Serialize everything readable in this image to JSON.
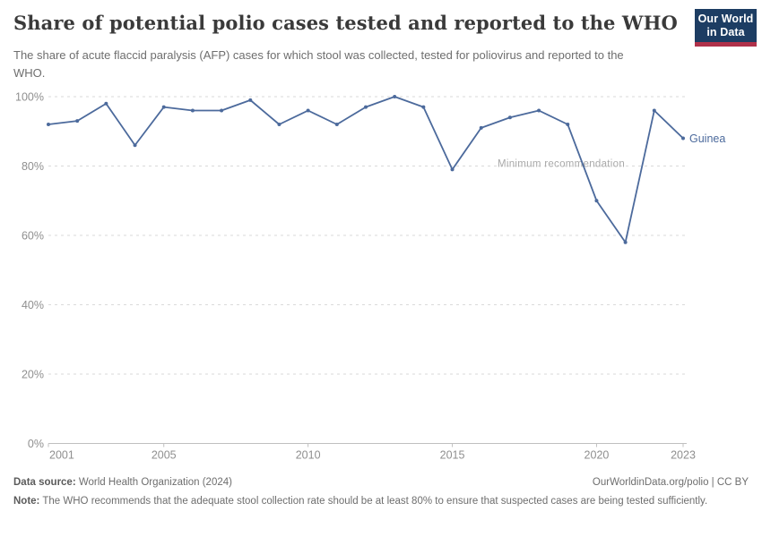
{
  "header": {
    "title": "Share of potential polio cases tested and reported to the WHO",
    "subtitle": "The share of acute flaccid paralysis (AFP) cases for which stool was collected, tested for poliovirus and reported to the WHO.",
    "logo": {
      "line1": "Our World",
      "line2": "in Data"
    }
  },
  "chart_data": {
    "type": "line",
    "title": "Share of potential polio cases tested and reported to the WHO",
    "x": [
      2001,
      2002,
      2003,
      2004,
      2005,
      2006,
      2007,
      2008,
      2009,
      2010,
      2011,
      2012,
      2013,
      2014,
      2015,
      2016,
      2017,
      2018,
      2019,
      2020,
      2021,
      2022,
      2023
    ],
    "series": [
      {
        "name": "Guinea",
        "values": [
          92,
          93,
          98,
          86,
          97,
          96,
          96,
          99,
          92,
          96,
          92,
          97,
          100,
          97,
          79,
          91,
          94,
          96,
          92,
          70,
          58,
          96,
          88
        ]
      }
    ],
    "ylim": [
      0,
      100
    ],
    "yticks": [
      0,
      20,
      40,
      60,
      80,
      100
    ],
    "ytick_suffix": "%",
    "xticks": [
      2001,
      2005,
      2010,
      2015,
      2020,
      2023
    ],
    "grid": true,
    "legend_position": "end-of-line",
    "annotation": {
      "text": "Minimum recommendation",
      "value": 80
    }
  },
  "footer": {
    "source_label": "Data source:",
    "source_value": "World Health Organization (2024)",
    "attribution": "OurWorldinData.org/polio | CC BY",
    "note_label": "Note:",
    "note_text": "The WHO recommends that the adequate stool collection rate should be at least 80% to ensure that suspected cases are being tested sufficiently."
  },
  "colors": {
    "line": "#4c6a9c",
    "grid": "#dadada",
    "axis": "#c0c0c0",
    "tick_text": "#8f8f8f",
    "annotation_text": "#a9a9a9",
    "logo_bg": "#1d3d63",
    "logo_red": "#b0314a"
  }
}
